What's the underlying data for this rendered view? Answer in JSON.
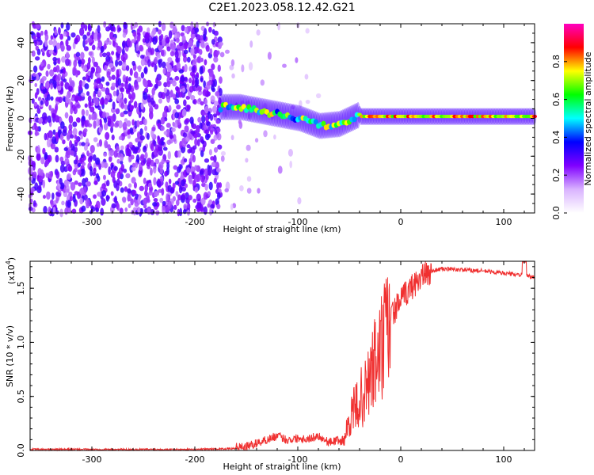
{
  "title": "C2E1.2023.058.12.42.G21",
  "chart_data": [
    {
      "type": "heatmap",
      "xlabel": "Height of straight line (km)",
      "ylabel": "Frequency (Hz)",
      "xlim": [
        -360,
        130
      ],
      "ylim": [
        -50,
        50
      ],
      "xticks": [
        -300,
        -200,
        -100,
        0,
        100
      ],
      "yticks": [
        -40,
        -20,
        0,
        20,
        40
      ],
      "colorbar": {
        "label": "Normalized spectral amplitude",
        "range": [
          0.0,
          1.0
        ],
        "ticks": [
          0.0,
          0.2,
          0.4,
          0.6,
          0.8
        ],
        "colors": [
          "#ffffff",
          "#d9b3ff",
          "#8000ff",
          "#0000ff",
          "#00ffff",
          "#00ff00",
          "#ffff00",
          "#ff0000",
          "#ff00c0"
        ]
      },
      "regions": [
        {
          "x_range": [
            -360,
            -175
          ],
          "freq_range": [
            -50,
            50
          ],
          "amplitude": 0.15
        },
        {
          "x_range": [
            -175,
            -40
          ],
          "freq": [
            6,
            6,
            4,
            2,
            0,
            -4,
            -3,
            2
          ],
          "amplitude": 0.6
        },
        {
          "x_range": [
            -40,
            130
          ],
          "freq": 1,
          "amplitude": 0.85
        }
      ]
    },
    {
      "type": "line",
      "xlabel": "Height of straight line (km)",
      "ylabel": "SNR (10 * v/v)",
      "multiplier": "(x10",
      "multiplier_exp": "4",
      "multiplier_close": ")",
      "xlim": [
        -360,
        130
      ],
      "ylim": [
        0,
        1.75
      ],
      "xticks": [
        -300,
        -200,
        -100,
        0,
        100
      ],
      "yticks": [
        0.0,
        0.5,
        1.0,
        1.5
      ],
      "color": "#f03030",
      "x": [
        -360,
        -300,
        -250,
        -200,
        -150,
        -140,
        -120,
        -110,
        -100,
        -90,
        -80,
        -70,
        -60,
        -55,
        -50,
        -45,
        -40,
        -35,
        -30,
        -25,
        -20,
        -15,
        -10,
        -5,
        0,
        10,
        20,
        30,
        40,
        60,
        80,
        100,
        110,
        120,
        130
      ],
      "y": [
        0.01,
        0.01,
        0.01,
        0.01,
        0.02,
        0.05,
        0.12,
        0.08,
        0.1,
        0.09,
        0.12,
        0.06,
        0.08,
        0.1,
        0.3,
        0.4,
        0.5,
        0.55,
        0.7,
        0.85,
        0.95,
        1.1,
        1.25,
        1.32,
        1.4,
        1.52,
        1.62,
        1.66,
        1.68,
        1.67,
        1.66,
        1.64,
        1.63,
        1.62,
        1.6
      ]
    }
  ]
}
